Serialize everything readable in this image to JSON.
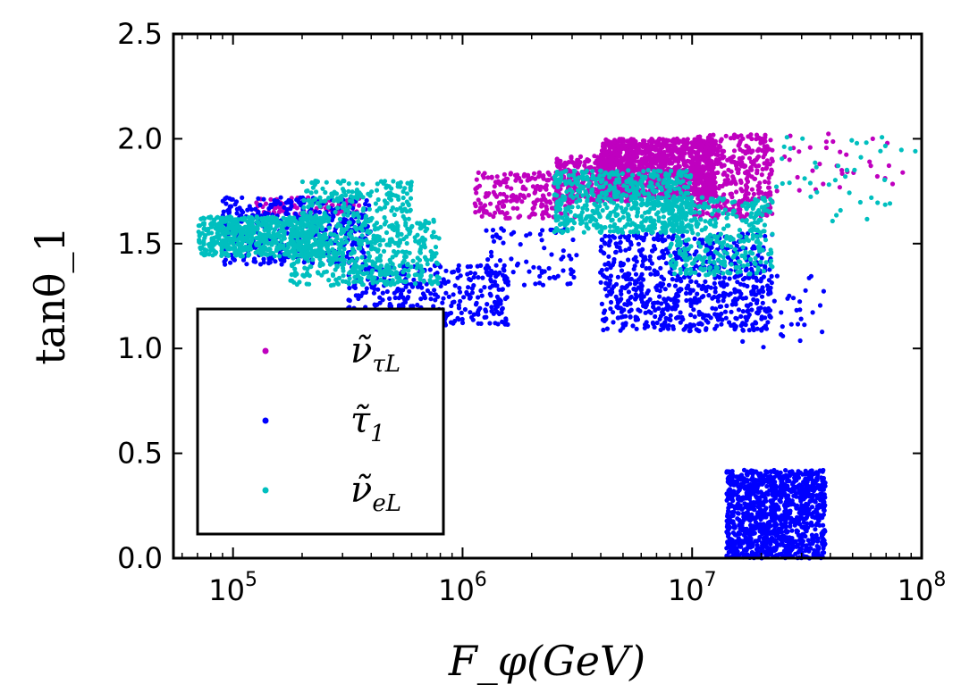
{
  "chart_data": {
    "type": "scatter",
    "title": "",
    "xlabel": "F_φ(GeV)",
    "ylabel": "tanθ_1",
    "xscale": "log",
    "xlim": [
      55000,
      100000000
    ],
    "ylim": [
      0.0,
      2.5
    ],
    "y_ticks": [
      "0.0",
      "0.5",
      "1.0",
      "1.5",
      "2.0",
      "2.5"
    ],
    "x_ticks": [
      {
        "base": "10",
        "exp": "5",
        "value": 100000
      },
      {
        "base": "10",
        "exp": "6",
        "value": 1000000
      },
      {
        "base": "10",
        "exp": "7",
        "value": 10000000
      },
      {
        "base": "10",
        "exp": "8",
        "value": 100000000
      }
    ],
    "legend_position": "lower-left",
    "series": [
      {
        "name": "ν̃_τL",
        "label_main": "ν̃",
        "label_sub": "τL",
        "color": "#bf00bf",
        "regions": [
          {
            "x_log": [
              6.05,
              6.5
            ],
            "y": [
              1.62,
              1.84
            ],
            "n": 220
          },
          {
            "x_log": [
              6.4,
              6.75
            ],
            "y": [
              1.7,
              1.92
            ],
            "n": 320
          },
          {
            "x_log": [
              6.6,
              7.1
            ],
            "y": [
              1.72,
              2.0
            ],
            "n": 1100
          },
          {
            "x_log": [
              7.0,
              7.35
            ],
            "y": [
              1.62,
              2.02
            ],
            "n": 420
          },
          {
            "x_log": [
              5.1,
              5.55
            ],
            "y": [
              1.64,
              1.72
            ],
            "n": 80
          },
          {
            "x_log": [
              7.35,
              7.95
            ],
            "y": [
              1.75,
              2.04
            ],
            "n": 35
          }
        ]
      },
      {
        "name": "τ̃_1",
        "label_main": "τ̃",
        "label_sub": "1",
        "color": "#0000ff",
        "regions": [
          {
            "x_log": [
              4.95,
              5.6
            ],
            "y": [
              1.4,
              1.72
            ],
            "n": 420
          },
          {
            "x_log": [
              5.5,
              6.2
            ],
            "y": [
              1.1,
              1.4
            ],
            "n": 360
          },
          {
            "x_log": [
              6.1,
              6.5
            ],
            "y": [
              1.3,
              1.58
            ],
            "n": 80
          },
          {
            "x_log": [
              6.6,
              7.35
            ],
            "y": [
              1.08,
              1.55
            ],
            "n": 720
          },
          {
            "x_log": [
              7.1,
              7.6
            ],
            "y": [
              1.0,
              1.35
            ],
            "n": 50
          },
          {
            "x_log": [
              7.15,
              7.58
            ],
            "y": [
              0.0,
              0.42
            ],
            "n": 1100
          }
        ]
      },
      {
        "name": "ν̃_eL",
        "label_main": "ν̃",
        "label_sub": "eL",
        "color": "#00bfbf",
        "regions": [
          {
            "x_log": [
              4.85,
              5.4
            ],
            "y": [
              1.44,
              1.63
            ],
            "n": 620
          },
          {
            "x_log": [
              5.25,
              5.9
            ],
            "y": [
              1.3,
              1.62
            ],
            "n": 520
          },
          {
            "x_log": [
              5.3,
              5.78
            ],
            "y": [
              1.62,
              1.8
            ],
            "n": 180
          },
          {
            "x_log": [
              6.4,
              7.0
            ],
            "y": [
              1.55,
              1.85
            ],
            "n": 620
          },
          {
            "x_log": [
              6.9,
              7.35
            ],
            "y": [
              1.35,
              1.72
            ],
            "n": 360
          },
          {
            "x_log": [
              7.35,
              8.0
            ],
            "y": [
              1.6,
              2.02
            ],
            "n": 40
          }
        ]
      }
    ]
  }
}
